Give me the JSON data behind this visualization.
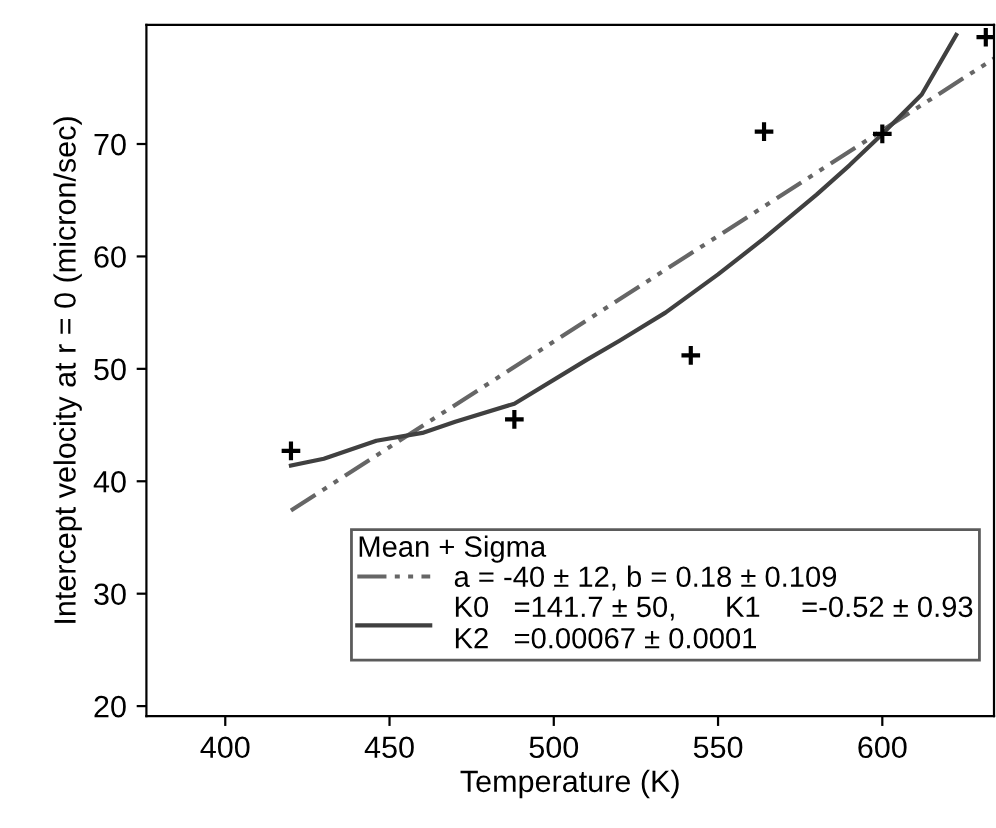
{
  "chart_data": {
    "type": "scatter",
    "xlabel": "Temperature (K)",
    "ylabel": "Intercept velocity at r = 0 (micron/sec)",
    "legend_title": "Mean + Sigma",
    "legend": "bottom right",
    "grid": false,
    "xlim": [
      376,
      634
    ],
    "ylim": [
      19.1,
      80.6
    ],
    "xticks": [
      400,
      450,
      500,
      550,
      600
    ],
    "yticks": [
      20,
      30,
      40,
      50,
      60,
      70
    ],
    "series": [
      {
        "marker": "cross",
        "color": "#000000",
        "x": [
          420,
          488,
          541.7,
          564,
          600,
          631.5
        ],
        "values": [
          42.7,
          45.5,
          51.2,
          71.1,
          70.9,
          79.5
        ]
      },
      {
        "type": "line",
        "name": "a = -40 ± 12, b = 0.18 ± 0.109",
        "line_style": "dashed",
        "color": "#666666",
        "x": [
          420,
          634
        ],
        "values": [
          37.4,
          77.6
        ]
      },
      {
        "type": "line",
        "name": "K0   =141.7 ± 50,      K1     =-0.52 ± 0.93\nK2   =0.00067 ± 0.0001",
        "line_style": "solid",
        "color": "#404040",
        "x": [
          420,
          430,
          446,
          460,
          470,
          488,
          510,
          520,
          534,
          550,
          564,
          580,
          590,
          600,
          612,
          622.5
        ],
        "values": [
          41.4,
          42,
          43.6,
          44.3,
          45.3,
          46.9,
          50.8,
          52.5,
          55,
          58.4,
          61.6,
          65.5,
          68.1,
          70.9,
          74.4,
          79.7
        ]
      }
    ]
  }
}
